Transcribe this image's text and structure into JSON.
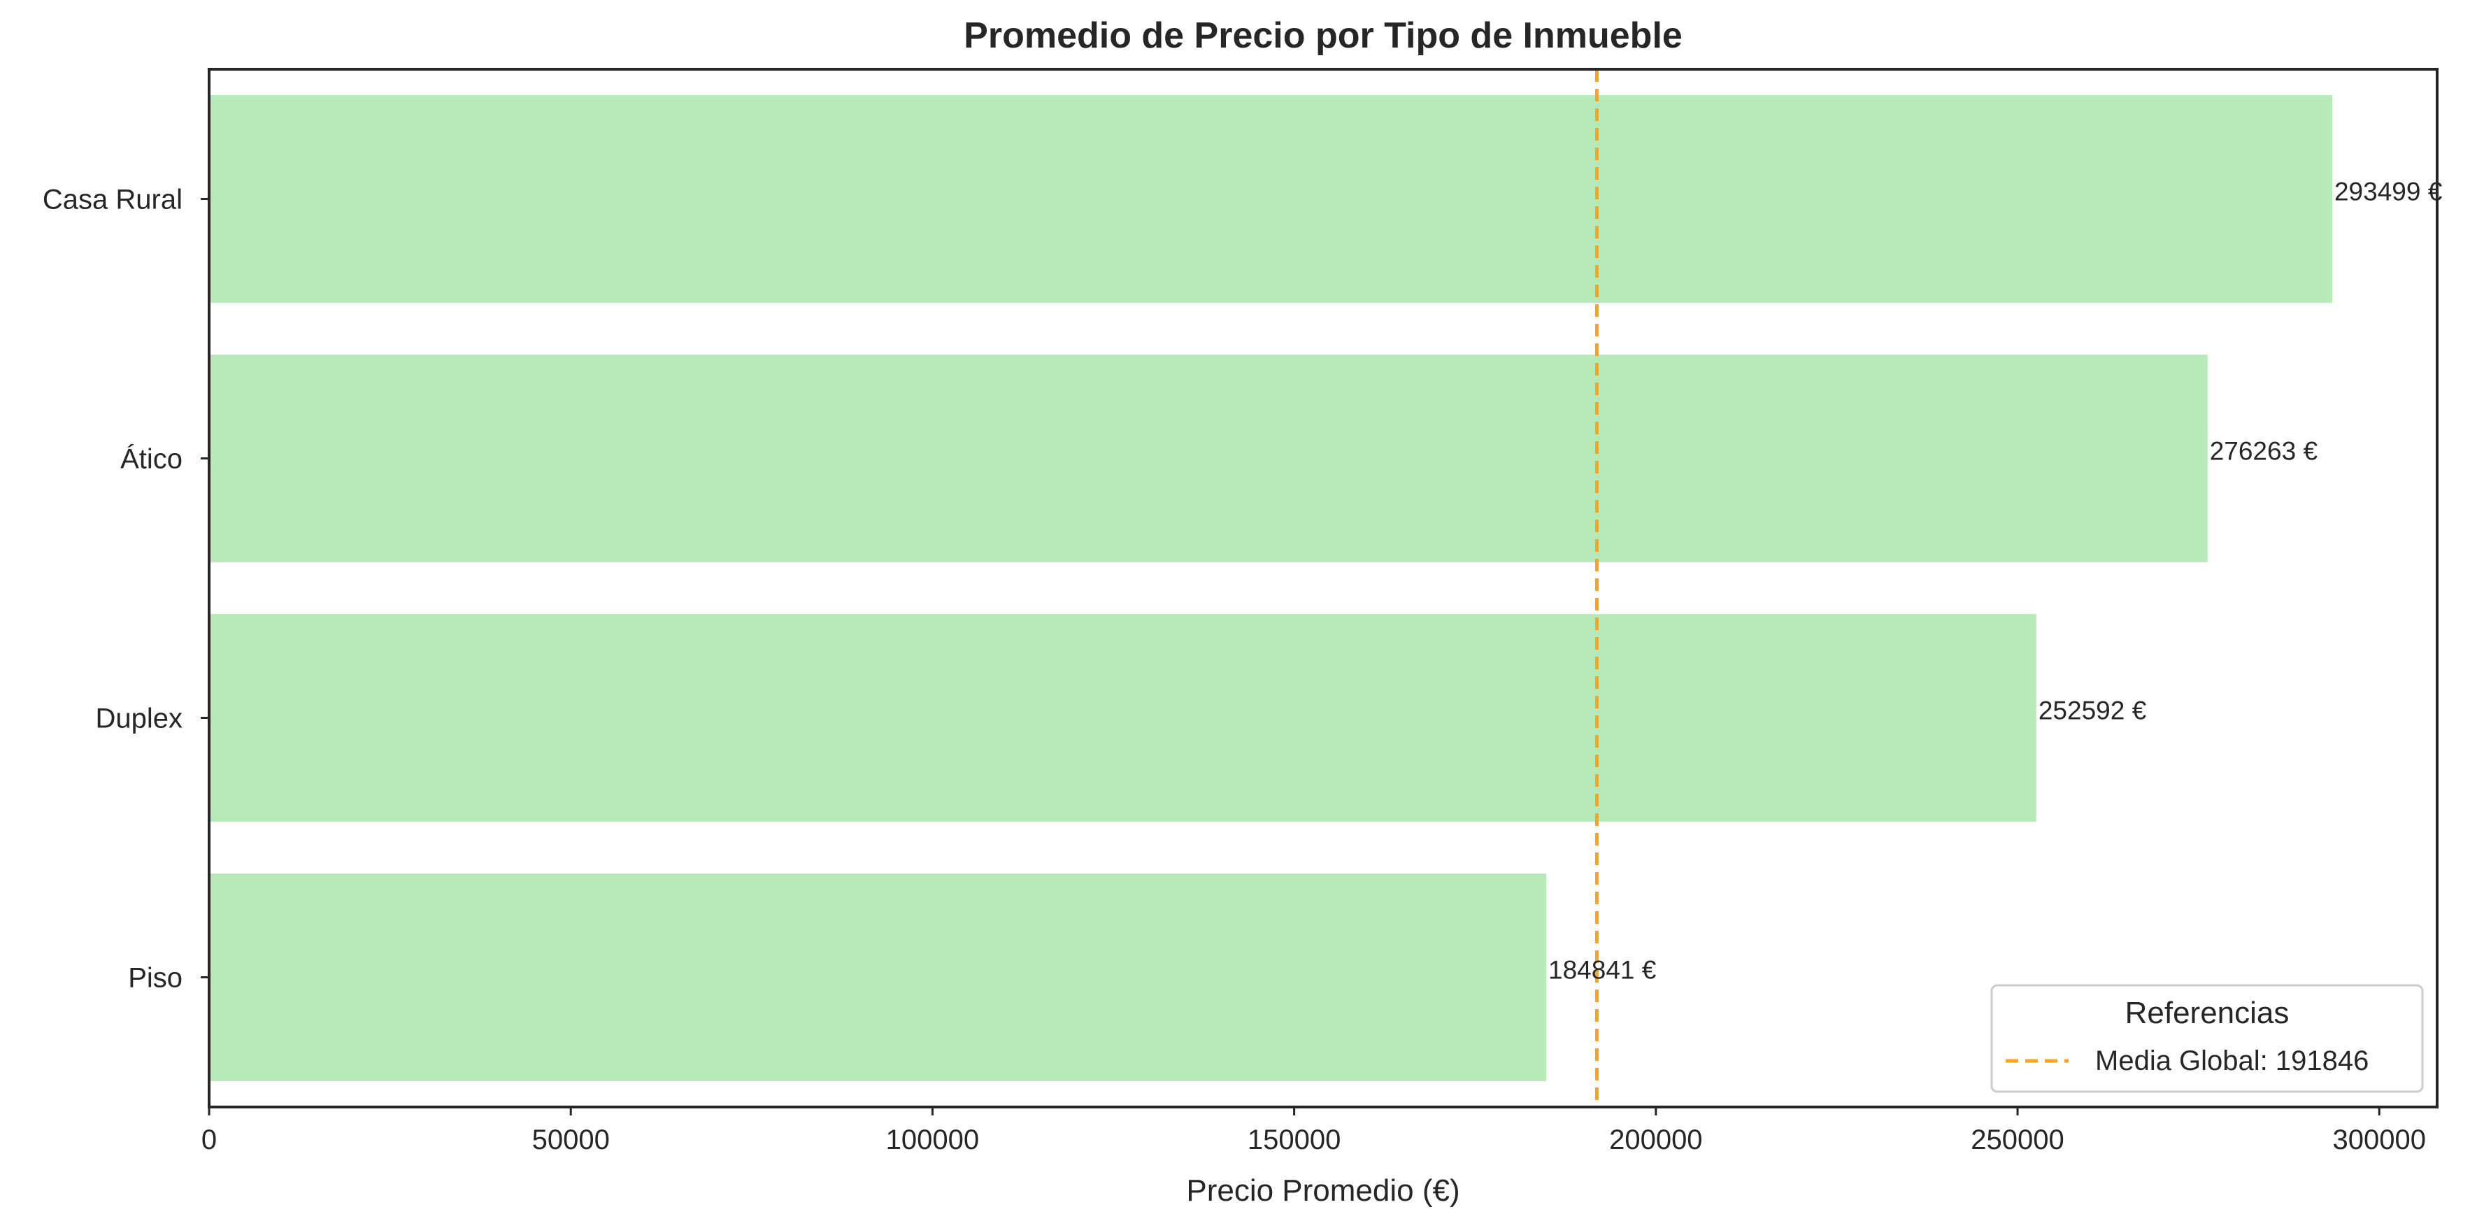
{
  "chart_data": {
    "type": "bar",
    "orientation": "horizontal",
    "title": "Promedio de Precio por Tipo de Inmueble",
    "xlabel": "Precio Promedio (€)",
    "ylabel": "",
    "categories": [
      "Casa Rural",
      "Ático",
      "Duplex",
      "Piso"
    ],
    "values": [
      293499,
      276263,
      252592,
      184841
    ],
    "data_labels": [
      "293499 €",
      "276263 €",
      "252592 €",
      "184841 €"
    ],
    "xlim": [
      0,
      308000
    ],
    "x_ticks": [
      0,
      50000,
      100000,
      150000,
      200000,
      250000,
      300000
    ],
    "x_tick_labels": [
      "0",
      "50000",
      "100000",
      "150000",
      "200000",
      "250000",
      "300000"
    ],
    "bar_color": "#b8eab9",
    "grid": false,
    "reference_line": {
      "value": 191846,
      "orientation": "vertical",
      "style": "dashed",
      "color": "#ffa31a",
      "label": "Media Global: 191846"
    },
    "legend": {
      "title": "Referencias",
      "position": "lower-right",
      "entries": [
        "Media Global: 191846"
      ]
    }
  }
}
